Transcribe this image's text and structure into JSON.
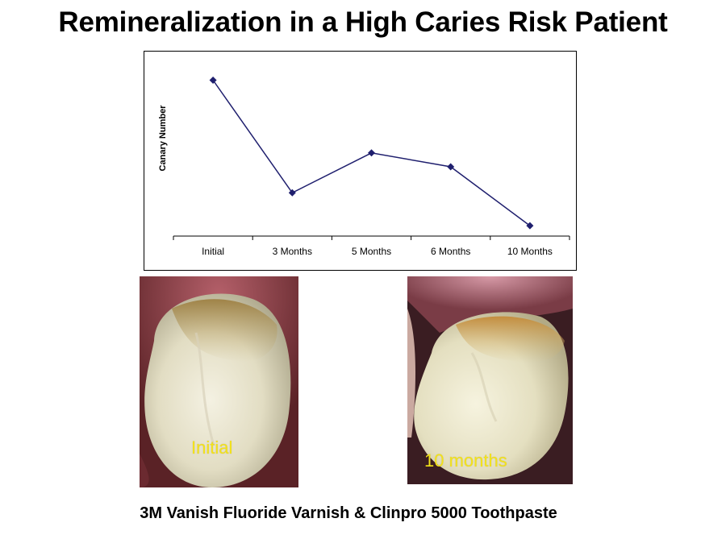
{
  "slide": {
    "title": "Remineralization in a High Caries Risk Patient",
    "caption": "3M Vanish Fluoride Varnish & Clinpro 5000 Toothpaste"
  },
  "photos": {
    "initial_label": "Initial",
    "ten_months_label": "10 months"
  },
  "colors": {
    "line": "#1f1f6e",
    "marker": "#1f1f6e",
    "photo_label": "#f3e21a"
  },
  "chart_data": {
    "type": "line",
    "title": "",
    "xlabel": "",
    "ylabel": "Canary Number",
    "categories": [
      "Initial",
      "3 Months",
      "5 Months",
      "6 Months",
      "10 Months"
    ],
    "series": [
      {
        "name": "Canary Number",
        "values": [
          90,
          25,
          48,
          40,
          6
        ]
      }
    ],
    "ylim": [
      0,
      100
    ],
    "grid": false,
    "legend": "none"
  }
}
